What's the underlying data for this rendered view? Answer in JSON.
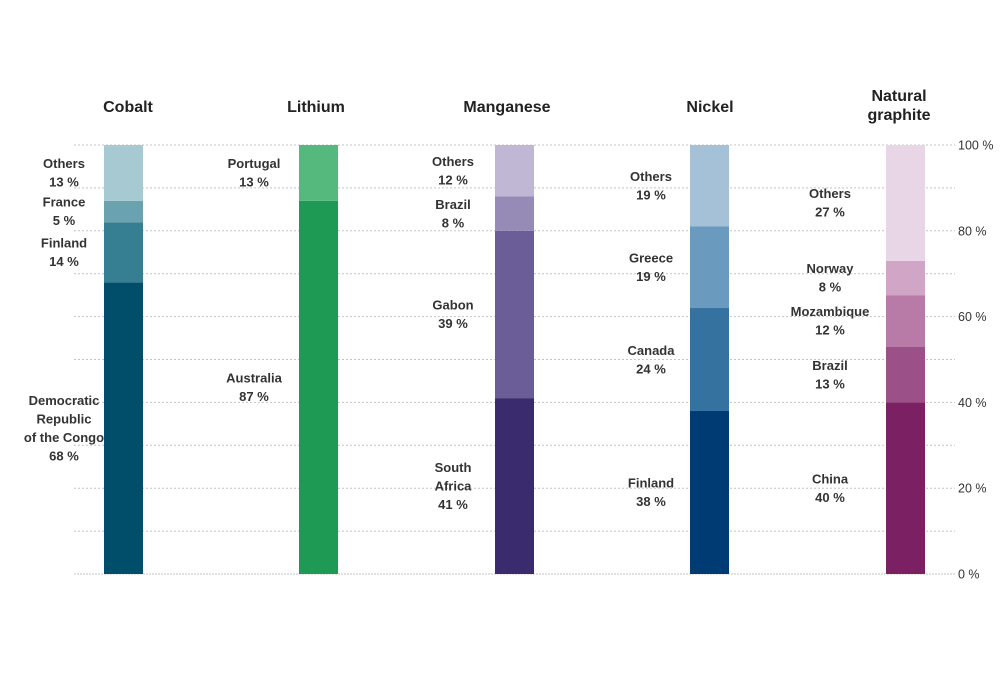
{
  "chart_data": {
    "type": "bar",
    "stacked": true,
    "ylim": [
      0,
      100
    ],
    "y_ticks": [
      {
        "value": 0,
        "label": "0 %"
      },
      {
        "value": 20,
        "label": "20 %"
      },
      {
        "value": 40,
        "label": "40 %"
      },
      {
        "value": 60,
        "label": "60 %"
      },
      {
        "value": 80,
        "label": "80 %"
      },
      {
        "value": 100,
        "label": "100 %"
      }
    ],
    "grid": true,
    "columns": [
      {
        "title": [
          "Cobalt"
        ],
        "segments": [
          {
            "label": [
              "Democratic",
              "Republic",
              "of the Congo"
            ],
            "pct_label": "68 %",
            "value": 68,
            "color": "#004e6a"
          },
          {
            "label": [
              "Finland"
            ],
            "pct_label": "14 %",
            "value": 14,
            "color": "#367f93"
          },
          {
            "label": [
              "France"
            ],
            "pct_label": "5 %",
            "value": 5,
            "color": "#6ba2b0"
          },
          {
            "label": [
              "Others"
            ],
            "pct_label": "13 %",
            "value": 13,
            "color": "#a6c9d2"
          }
        ]
      },
      {
        "title": [
          "Lithium"
        ],
        "segments": [
          {
            "label": [
              "Australia"
            ],
            "pct_label": "87 %",
            "value": 87,
            "color": "#1e9a54"
          },
          {
            "label": [
              "Portugal"
            ],
            "pct_label": "13 %",
            "value": 13,
            "color": "#55b97e"
          }
        ]
      },
      {
        "title": [
          "Manganese"
        ],
        "segments": [
          {
            "label": [
              "South",
              "Africa"
            ],
            "pct_label": "41 %",
            "value": 41,
            "color": "#3a2a6e"
          },
          {
            "label": [
              "Gabon"
            ],
            "pct_label": "39 %",
            "value": 39,
            "color": "#6b5d98"
          },
          {
            "label": [
              "Brazil"
            ],
            "pct_label": "8 %",
            "value": 8,
            "color": "#968bb7"
          },
          {
            "label": [
              "Others"
            ],
            "pct_label": "12 %",
            "value": 12,
            "color": "#bfb7d3"
          }
        ]
      },
      {
        "title": [
          "Nickel"
        ],
        "segments": [
          {
            "label": [
              "Finland"
            ],
            "pct_label": "38 %",
            "value": 38,
            "color": "#003b73"
          },
          {
            "label": [
              "Canada"
            ],
            "pct_label": "24 %",
            "value": 24,
            "color": "#3672a0"
          },
          {
            "label": [
              "Greece"
            ],
            "pct_label": "19 %",
            "value": 19,
            "color": "#6a9abe"
          },
          {
            "label": [
              "Others"
            ],
            "pct_label": "19 %",
            "value": 19,
            "color": "#a5c1d8"
          }
        ]
      },
      {
        "title": [
          "Natural",
          "graphite"
        ],
        "segments": [
          {
            "label": [
              "China"
            ],
            "pct_label": "40 %",
            "value": 40,
            "color": "#7b2163"
          },
          {
            "label": [
              "Brazil"
            ],
            "pct_label": "13 %",
            "value": 13,
            "color": "#9c5088"
          },
          {
            "label": [
              "Mozambique"
            ],
            "pct_label": "12 %",
            "value": 12,
            "color": "#b87aa7"
          },
          {
            "label": [
              "Norway"
            ],
            "pct_label": "8 %",
            "value": 8,
            "color": "#d0a5c5"
          },
          {
            "label": [
              "Others"
            ],
            "pct_label": "27 %",
            "value": 27,
            "color": "#e8d5e5"
          }
        ]
      }
    ]
  }
}
